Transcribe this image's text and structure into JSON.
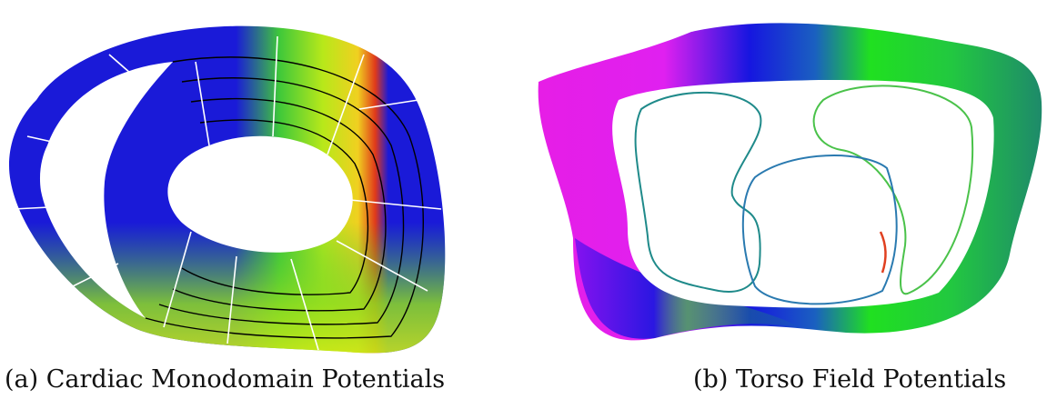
{
  "figure": {
    "panels": [
      {
        "caption": "(a) Cardiac Monodomain Potentials"
      },
      {
        "caption": "(b) Torso Field Potentials"
      }
    ]
  }
}
